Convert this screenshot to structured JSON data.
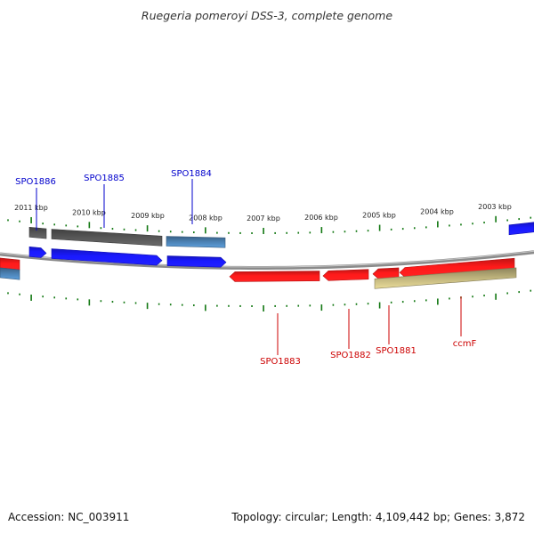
{
  "title": "Ruegeria pomeroyi DSS-3, complete genome",
  "footer": {
    "accession": "Accession: NC_003911",
    "topology": "Topology: circular; Length: 4,109,442 bp; Genes: 3,872"
  },
  "colors": {
    "forward_gene": "#1a1aff",
    "reverse_gene": "#ff1a1a",
    "rna_gene": "#4a7fb0",
    "pseudo_gene": "#555555",
    "ccm_gene": "#bbb07a",
    "label_forward": "#0000cc",
    "label_reverse": "#cc0000",
    "tick": "#117711",
    "backbone": "#8a8a8a"
  },
  "kbp_ticks": [
    {
      "label": "2011 kbp",
      "u": 35
    },
    {
      "label": "2010 kbp",
      "u": 100
    },
    {
      "label": "2009 kbp",
      "u": 166
    },
    {
      "label": "2008 kbp",
      "u": 231
    },
    {
      "label": "2007 kbp",
      "u": 296
    },
    {
      "label": "2006 kbp",
      "u": 361
    },
    {
      "label": "2005 kbp",
      "u": 426
    },
    {
      "label": "2004 kbp",
      "u": 491
    },
    {
      "label": "2003 kbp",
      "u": 556
    }
  ],
  "genes": [
    {
      "track": "upper",
      "color": "pseudo",
      "start": 33,
      "end": 52,
      "arrow": "none"
    },
    {
      "track": "upper",
      "color": "pseudo",
      "start": 58,
      "end": 182,
      "arrow": "none"
    },
    {
      "track": "upper",
      "color": "rna",
      "start": 187,
      "end": 253,
      "arrow": "none"
    },
    {
      "track": "upper",
      "color": "forward",
      "start": 572,
      "end": 600,
      "arrow": "none"
    },
    {
      "track": "fwd",
      "color": "forward",
      "start": 33,
      "end": 52,
      "arrow": "right"
    },
    {
      "track": "fwd",
      "color": "forward",
      "start": 58,
      "end": 182,
      "arrow": "right"
    },
    {
      "track": "fwd",
      "color": "forward",
      "start": 188,
      "end": 254,
      "arrow": "right"
    },
    {
      "track": "rev",
      "color": "reverse",
      "start": 0,
      "end": 22,
      "arrow": "none"
    },
    {
      "track": "rev",
      "color": "reverse",
      "start": 258,
      "end": 359,
      "arrow": "left"
    },
    {
      "track": "rev",
      "color": "reverse",
      "start": 363,
      "end": 414,
      "arrow": "left"
    },
    {
      "track": "rev",
      "color": "reverse",
      "start": 419,
      "end": 448,
      "arrow": "left"
    },
    {
      "track": "rev",
      "color": "reverse",
      "start": 449,
      "end": 578,
      "arrow": "left"
    },
    {
      "track": "lower",
      "color": "rna",
      "start": 0,
      "end": 22,
      "arrow": "none"
    },
    {
      "track": "lower",
      "color": "ccm",
      "start": 421,
      "end": 580,
      "arrow": "none"
    }
  ],
  "gene_labels": [
    {
      "text": "SPO1886",
      "strand": "forward"
    },
    {
      "text": "SPO1885",
      "strand": "forward"
    },
    {
      "text": "SPO1884",
      "strand": "forward"
    },
    {
      "text": "SPO1883",
      "strand": "reverse"
    },
    {
      "text": "SPO1882",
      "strand": "reverse"
    },
    {
      "text": "SPO1881",
      "strand": "reverse"
    },
    {
      "text": "ccmF",
      "strand": "reverse"
    }
  ]
}
